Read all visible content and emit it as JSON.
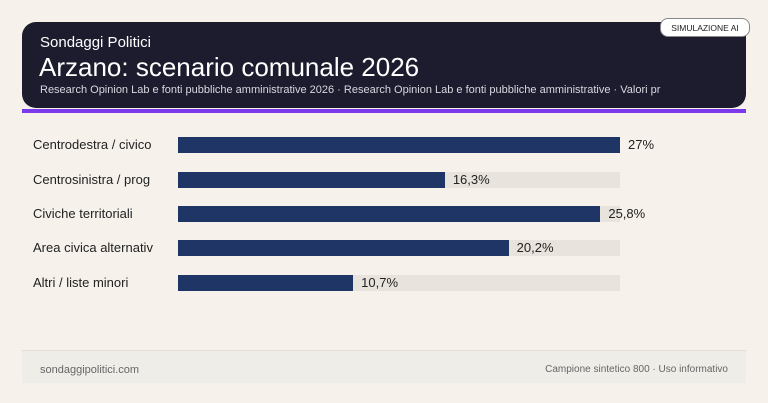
{
  "header": {
    "kicker": "Sondaggi Politici",
    "title": "Arzano: scenario comunale 2026",
    "subtitle": "Research Opinion Lab e fonti pubbliche amministrative 2026 · Research Opinion Lab e fonti pubbliche amministrative · Valori pr",
    "badge": "SIMULAZIONE AI"
  },
  "colors": {
    "header_bg": "#1c1c2e",
    "accent": "#7c3aed",
    "bar": "#1f3566",
    "track": "#e8e3dc"
  },
  "chart_data": {
    "type": "bar",
    "orientation": "horizontal",
    "categories": [
      "Centrodestra / civico",
      "Centrosinistra / prog",
      "Civiche territoriali",
      "Area civica alternativ",
      "Altri / liste minori"
    ],
    "values": [
      27,
      16.3,
      25.8,
      20.2,
      10.7
    ],
    "value_labels": [
      "27%",
      "16,3%",
      "25,8%",
      "20,2%",
      "10,7%"
    ],
    "xlim": [
      0,
      27
    ],
    "unit": "%"
  },
  "footer": {
    "left": "sondaggipolitici.com",
    "right": "Campione sintetico 800 · Uso informativo"
  }
}
